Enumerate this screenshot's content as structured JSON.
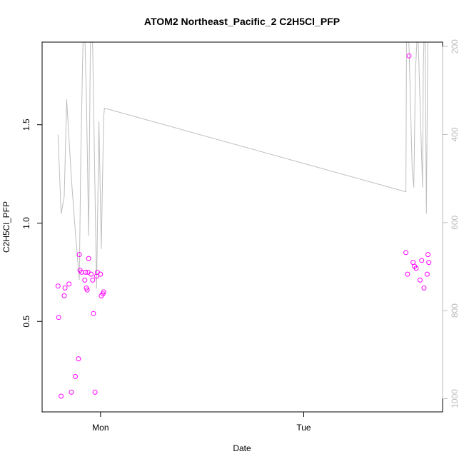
{
  "chart_data": {
    "type": "scatter",
    "title": "ATOM2 Northeast_Pacific_2 C2H5Cl_PFP",
    "xlabel": "Date",
    "ylabel": "C2H5Cl_PFP",
    "x_ticks": [
      "Mon",
      "Tue"
    ],
    "x_tick_values": [
      24,
      48
    ],
    "xlim": [
      17.1,
      64.4
    ],
    "ylim": [
      0.04,
      1.92
    ],
    "y_ticks": [
      0.5,
      1.0,
      1.5
    ],
    "y_tick_labels": [
      "0.5",
      "1.0",
      "1.5"
    ],
    "y2_ticks": [
      200,
      400,
      600,
      800,
      1000
    ],
    "y2_tick_labels": [
      "200",
      "400",
      "600",
      "800",
      "1000"
    ],
    "y2lim": [
      1030,
      190
    ],
    "colors": {
      "points": "#ff00ff",
      "line": "#bebebe",
      "axis": "#000000",
      "right_axis": "#bbbbbb"
    },
    "series": [
      {
        "type": "scatter",
        "points": [
          {
            "x": 18.98,
            "y": 0.68
          },
          {
            "x": 19.06,
            "y": 0.52
          },
          {
            "x": 19.34,
            "y": 0.12
          },
          {
            "x": 19.71,
            "y": 0.63
          },
          {
            "x": 19.81,
            "y": 0.67
          },
          {
            "x": 20.28,
            "y": 0.69
          },
          {
            "x": 20.56,
            "y": 0.14
          },
          {
            "x": 21.02,
            "y": 0.22
          },
          {
            "x": 21.39,
            "y": 0.31
          },
          {
            "x": 21.49,
            "y": 0.84
          },
          {
            "x": 21.58,
            "y": 0.76
          },
          {
            "x": 21.77,
            "y": 0.75
          },
          {
            "x": 22.14,
            "y": 0.71
          },
          {
            "x": 22.23,
            "y": 0.75
          },
          {
            "x": 22.32,
            "y": 0.67
          },
          {
            "x": 22.42,
            "y": 0.66
          },
          {
            "x": 22.51,
            "y": 0.75
          },
          {
            "x": 22.6,
            "y": 0.82
          },
          {
            "x": 22.88,
            "y": 0.74
          },
          {
            "x": 23.07,
            "y": 0.71
          },
          {
            "x": 23.16,
            "y": 0.54
          },
          {
            "x": 23.35,
            "y": 0.14
          },
          {
            "x": 23.53,
            "y": 0.73
          },
          {
            "x": 23.63,
            "y": 0.75
          },
          {
            "x": 24.0,
            "y": 0.74
          },
          {
            "x": 24.09,
            "y": 0.63
          },
          {
            "x": 24.28,
            "y": 0.64
          },
          {
            "x": 24.37,
            "y": 0.65
          },
          {
            "x": 60.07,
            "y": 0.85
          },
          {
            "x": 60.26,
            "y": 0.74
          },
          {
            "x": 60.44,
            "y": 1.85
          },
          {
            "x": 60.91,
            "y": 0.8
          },
          {
            "x": 61.09,
            "y": 0.78
          },
          {
            "x": 61.28,
            "y": 0.77
          },
          {
            "x": 61.74,
            "y": 0.71
          },
          {
            "x": 61.93,
            "y": 0.81
          },
          {
            "x": 62.21,
            "y": 0.67
          },
          {
            "x": 62.58,
            "y": 0.74
          },
          {
            "x": 62.67,
            "y": 0.84
          },
          {
            "x": 62.77,
            "y": 0.8
          }
        ]
      },
      {
        "type": "line",
        "axis": "right",
        "points": [
          {
            "x": 18.98,
            "y": 400
          },
          {
            "x": 19.34,
            "y": 580
          },
          {
            "x": 19.71,
            "y": 540
          },
          {
            "x": 20.0,
            "y": 320
          },
          {
            "x": 20.56,
            "y": 500
          },
          {
            "x": 21.02,
            "y": 620
          },
          {
            "x": 21.49,
            "y": 730
          },
          {
            "x": 21.67,
            "y": 450
          },
          {
            "x": 21.86,
            "y": 250
          },
          {
            "x": 22.04,
            "y": 100
          },
          {
            "x": 22.32,
            "y": 300
          },
          {
            "x": 22.6,
            "y": 630
          },
          {
            "x": 22.79,
            "y": 210
          },
          {
            "x": 22.88,
            "y": 100
          },
          {
            "x": 23.07,
            "y": 200
          },
          {
            "x": 23.53,
            "y": 750
          },
          {
            "x": 23.81,
            "y": 370
          },
          {
            "x": 24.09,
            "y": 660
          },
          {
            "x": 24.37,
            "y": 360
          },
          {
            "x": 24.47,
            "y": 340
          },
          {
            "x": 60.07,
            "y": 530
          },
          {
            "x": 60.16,
            "y": 100
          },
          {
            "x": 60.44,
            "y": 200
          },
          {
            "x": 60.81,
            "y": 480
          },
          {
            "x": 61.0,
            "y": 520
          },
          {
            "x": 61.19,
            "y": 260
          },
          {
            "x": 61.47,
            "y": 150
          },
          {
            "x": 62.03,
            "y": 520
          },
          {
            "x": 62.12,
            "y": 250
          },
          {
            "x": 62.3,
            "y": 100
          },
          {
            "x": 62.49,
            "y": 580
          },
          {
            "x": 62.67,
            "y": 150
          },
          {
            "x": 62.86,
            "y": 100
          }
        ]
      }
    ]
  }
}
